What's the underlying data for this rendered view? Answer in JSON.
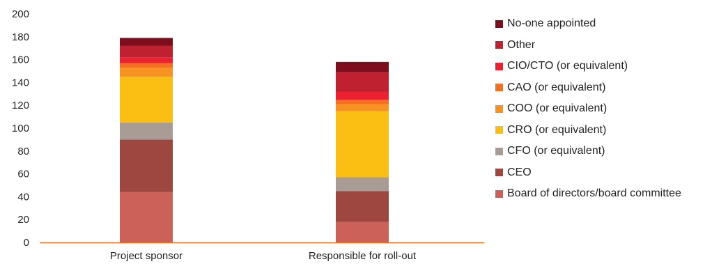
{
  "chart_data": {
    "type": "bar",
    "stacked": true,
    "categories": [
      "Project sponsor",
      "Responsible for roll-out"
    ],
    "ylim": [
      0,
      200
    ],
    "yticks": [
      0,
      20,
      40,
      60,
      80,
      100,
      120,
      140,
      160,
      180,
      200
    ],
    "grid": false,
    "legend_position": "right",
    "series": [
      {
        "name": "Board of directors/board committee",
        "color": "#cc6157",
        "values": [
          44,
          18
        ]
      },
      {
        "name": "CEO",
        "color": "#9e4640",
        "values": [
          46,
          27
        ]
      },
      {
        "name": "CFO (or equivalent)",
        "color": "#a89c94",
        "values": [
          15,
          12
        ]
      },
      {
        "name": "CRO (or equivalent)",
        "color": "#fbbe12",
        "values": [
          40,
          58
        ]
      },
      {
        "name": "COO (or equivalent)",
        "color": "#f79322",
        "values": [
          8,
          6
        ]
      },
      {
        "name": "CAO (or equivalent)",
        "color": "#f37021",
        "values": [
          4,
          4
        ]
      },
      {
        "name": "CIO/CTO (or equivalent)",
        "color": "#ec2130",
        "values": [
          5,
          7
        ]
      },
      {
        "name": "Other",
        "color": "#bf2131",
        "values": [
          10,
          17
        ]
      },
      {
        "name": "No-one appointed",
        "color": "#7e0e1c",
        "values": [
          7,
          9
        ]
      }
    ],
    "axis_color": "#f37021"
  }
}
